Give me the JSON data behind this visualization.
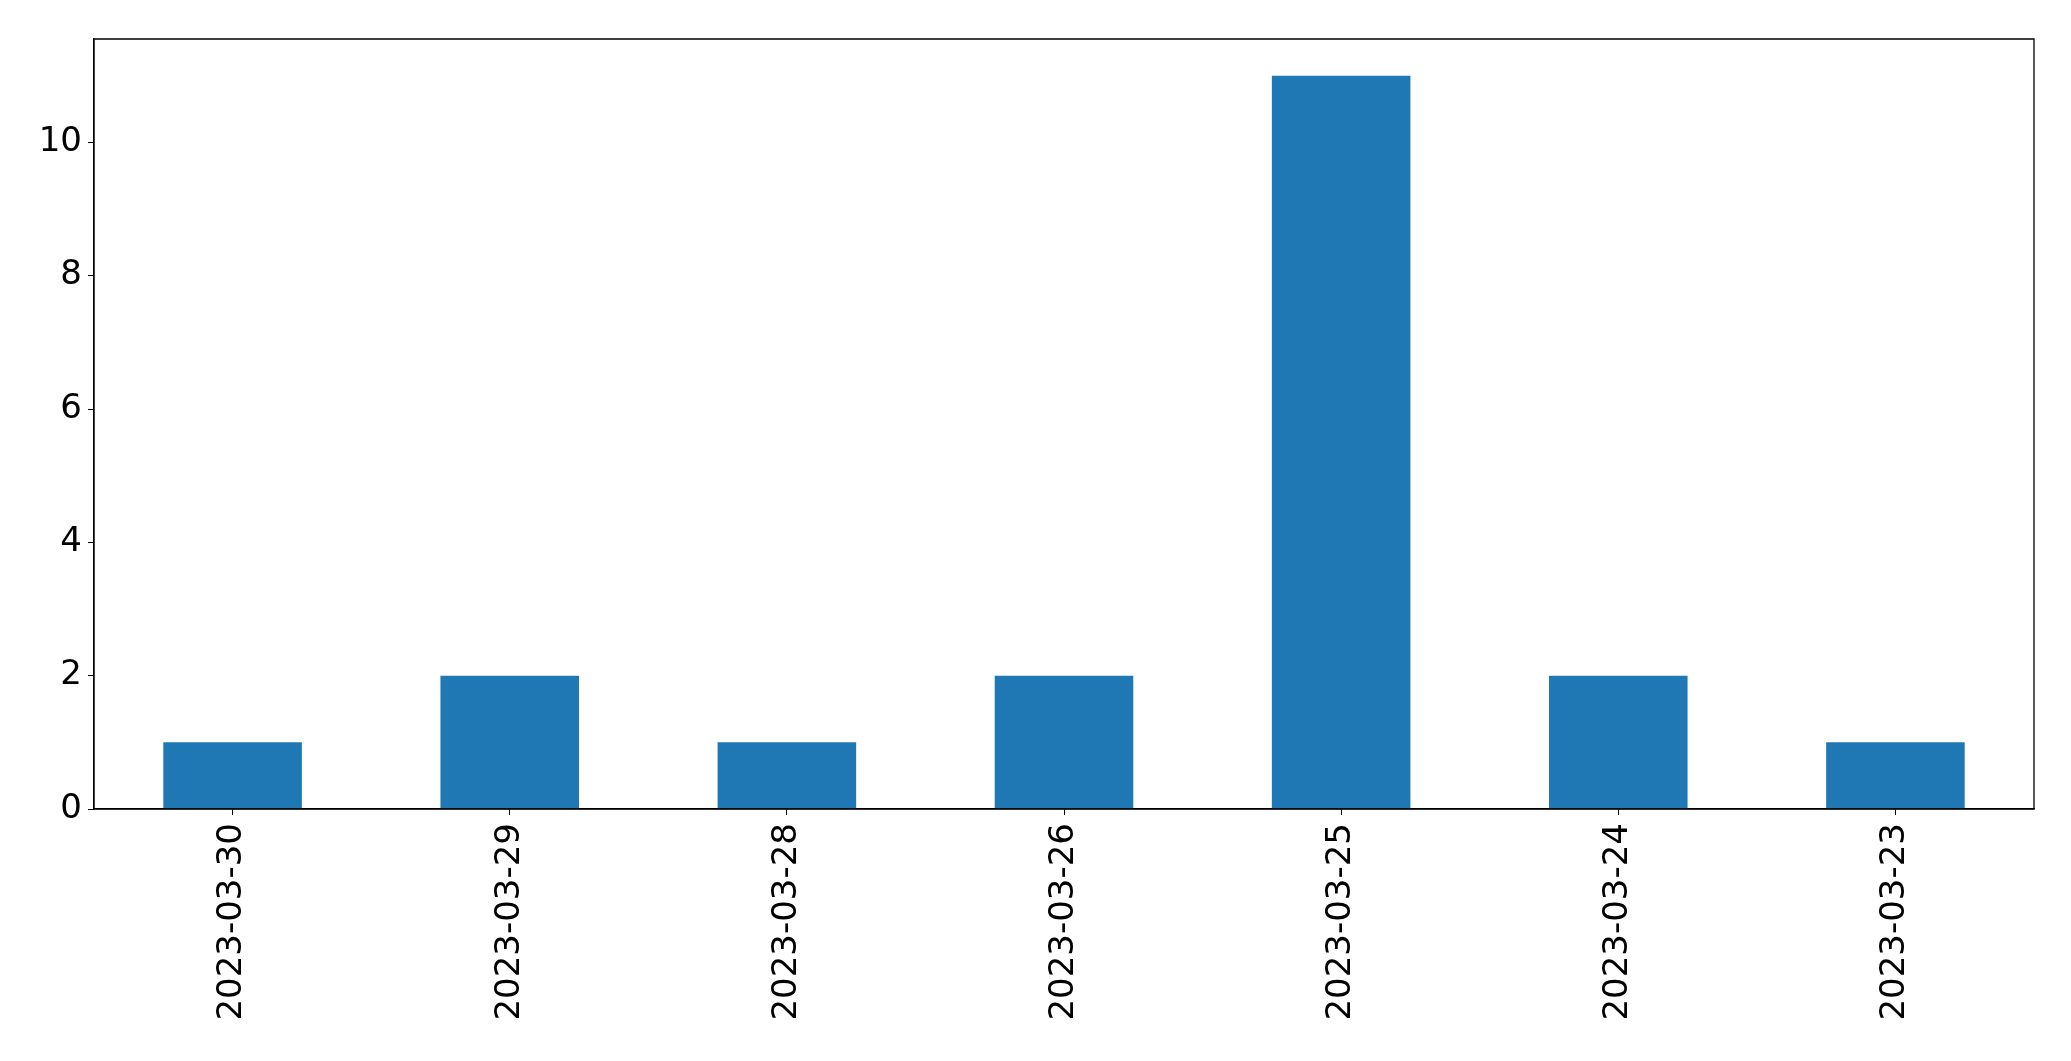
{
  "chart_data": {
    "type": "bar",
    "categories": [
      "2023-03-30",
      "2023-03-29",
      "2023-03-28",
      "2023-03-26",
      "2023-03-25",
      "2023-03-24",
      "2023-03-23"
    ],
    "values": [
      1,
      2,
      1,
      2,
      11,
      2,
      1
    ],
    "color": "#1f77b4",
    "ylim": [
      0,
      11.55
    ],
    "yticks": [
      0,
      2,
      4,
      6,
      8,
      10
    ]
  }
}
